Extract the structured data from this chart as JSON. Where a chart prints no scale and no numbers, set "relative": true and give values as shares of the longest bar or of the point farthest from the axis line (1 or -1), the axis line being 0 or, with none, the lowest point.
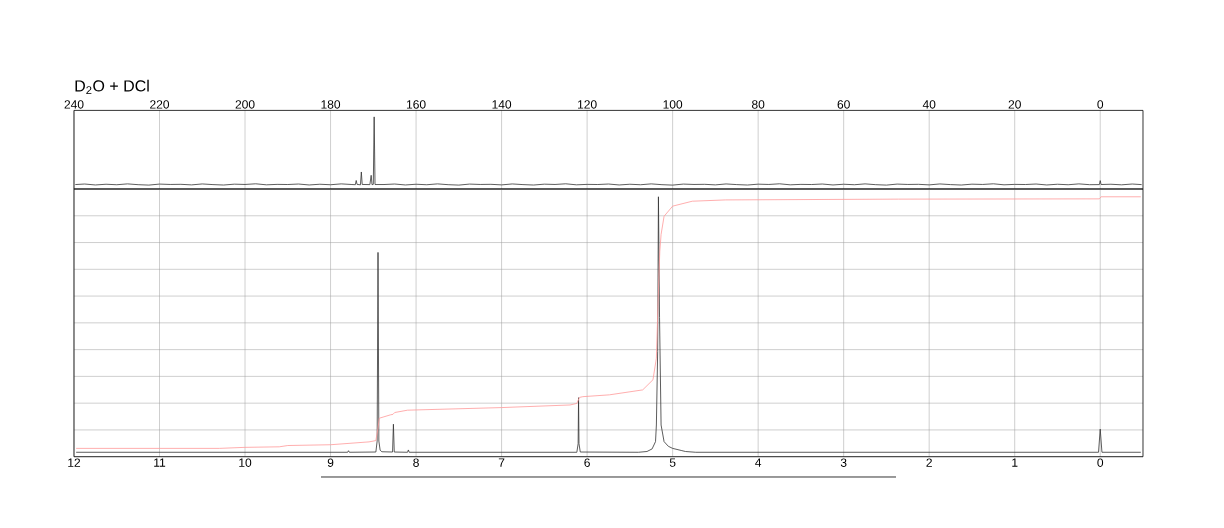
{
  "chart_data": [
    {
      "type": "line",
      "title": "D$_{2}$O + DCl",
      "relative": true,
      "tick_labels": "x",
      "grid": "x",
      "xlim": [
        240,
        -10
      ],
      "xticks": [
        240,
        220,
        200,
        180,
        160,
        140,
        120,
        100,
        80,
        60,
        40,
        20,
        0
      ],
      "color": "#333333",
      "x": [
        239.6,
        237.5,
        235,
        232.5,
        230,
        227.5,
        225,
        222.5,
        220,
        217.5,
        215,
        212.5,
        210,
        207.5,
        205,
        202.5,
        200,
        197.5,
        195,
        192.5,
        190,
        187.5,
        185,
        182.5,
        180,
        177.5,
        175,
        174.2,
        174,
        173.8,
        173,
        172.8,
        172.6,
        170.8,
        170.5,
        170.3,
        170,
        169.8,
        169.6,
        167.5,
        165,
        162.5,
        160,
        157.5,
        155,
        152.5,
        150,
        147.5,
        145,
        142.5,
        140,
        137.5,
        135,
        132.5,
        130,
        127.5,
        125,
        122.5,
        120,
        117.5,
        115,
        112.5,
        110,
        107.5,
        105,
        102.5,
        100,
        97.5,
        95,
        92.5,
        90,
        87.5,
        85,
        82.5,
        80,
        77.5,
        75,
        72.5,
        70,
        67.5,
        65,
        62.5,
        60,
        57.5,
        55,
        52.5,
        50,
        47.5,
        45,
        42.5,
        40,
        37.5,
        35,
        32.5,
        30,
        27.5,
        25,
        22.5,
        20,
        17.5,
        15,
        12.5,
        10,
        7.5,
        5,
        2.5,
        0.2,
        0,
        -0.2,
        -2.5,
        -5,
        -7.5,
        -9.6
      ],
      "values": [
        0.062,
        0.069,
        0.056,
        0.066,
        0.059,
        0.071,
        0.06,
        0.054,
        0.068,
        0.063,
        0.065,
        0.057,
        0.07,
        0.061,
        0.055,
        0.067,
        0.063,
        0.072,
        0.058,
        0.064,
        0.062,
        0.069,
        0.056,
        0.066,
        0.059,
        0.071,
        0.062,
        0.06,
        0.118,
        0.064,
        0.058,
        0.236,
        0.063,
        0.061,
        0.19,
        0.06,
        0.064,
        1.0,
        0.062,
        0.062,
        0.069,
        0.056,
        0.066,
        0.059,
        0.071,
        0.06,
        0.054,
        0.068,
        0.063,
        0.065,
        0.057,
        0.07,
        0.061,
        0.055,
        0.067,
        0.063,
        0.072,
        0.058,
        0.064,
        0.062,
        0.069,
        0.056,
        0.066,
        0.059,
        0.071,
        0.06,
        0.054,
        0.068,
        0.063,
        0.065,
        0.057,
        0.07,
        0.061,
        0.055,
        0.067,
        0.063,
        0.072,
        0.058,
        0.064,
        0.062,
        0.069,
        0.056,
        0.066,
        0.059,
        0.071,
        0.06,
        0.054,
        0.068,
        0.063,
        0.065,
        0.057,
        0.07,
        0.061,
        0.055,
        0.067,
        0.063,
        0.072,
        0.058,
        0.064,
        0.062,
        0.069,
        0.056,
        0.066,
        0.059,
        0.071,
        0.06,
        0.061,
        0.116,
        0.062,
        0.066,
        0.058,
        0.069,
        0.061
      ]
    },
    {
      "type": "line",
      "relative": true,
      "tick_labels": "x",
      "grid": true,
      "xlim": [
        12,
        -0.5
      ],
      "xticks": [
        12,
        11,
        10,
        9,
        8,
        7,
        6,
        5,
        4,
        3,
        2,
        1,
        0
      ],
      "series": [
        {
          "color": "#333333",
          "x": [
            11.97,
            9.5,
            8.8,
            8.79,
            8.78,
            8.47,
            8.455,
            8.445,
            8.435,
            8.42,
            8.4,
            8.275,
            8.265,
            8.255,
            8.1,
            8.09,
            8.08,
            6.12,
            6.105,
            6.1,
            6.095,
            6.08,
            5.4,
            5.3,
            5.24,
            5.2,
            5.19,
            5.175,
            5.166,
            5.153,
            5.135,
            5.1,
            5.05,
            5.0,
            4.9,
            4.85,
            4.73,
            0.02,
            0,
            -0.02,
            -0.47
          ],
          "values": [
            0.017,
            0.017,
            0.017,
            0.023,
            0.017,
            0.018,
            0.06,
            0.786,
            0.06,
            0.025,
            0.019,
            0.018,
            0.125,
            0.018,
            0.017,
            0.026,
            0.017,
            0.017,
            0.05,
            0.227,
            0.05,
            0.018,
            0.017,
            0.02,
            0.03,
            0.058,
            0.122,
            0.405,
            1.0,
            0.535,
            0.122,
            0.058,
            0.04,
            0.032,
            0.024,
            0.02,
            0.017,
            0.017,
            0.106,
            0.017,
            0.017
          ]
        },
        {
          "color": "#ff9999",
          "x": [
            11.97,
            10.3,
            10.0,
            9.6,
            9.5,
            9.0,
            8.55,
            8.47,
            8.445,
            8.43,
            8.3,
            8.27,
            8.25,
            8.1,
            7.0,
            6.2,
            6.12,
            6.09,
            6.05,
            5.74,
            5.35,
            5.23,
            5.19,
            5.17,
            5.15,
            5.135,
            5.1,
            5.0,
            4.77,
            4.38,
            2.36,
            0.01,
            -0.01,
            -0.47
          ],
          "values": [
            0.032,
            0.032,
            0.036,
            0.038,
            0.043,
            0.046,
            0.057,
            0.062,
            0.11,
            0.148,
            0.161,
            0.163,
            0.17,
            0.179,
            0.189,
            0.199,
            0.205,
            0.228,
            0.231,
            0.238,
            0.257,
            0.296,
            0.379,
            0.598,
            0.79,
            0.855,
            0.925,
            0.964,
            0.983,
            0.988,
            0.991,
            0.992,
            1.0,
            1.0
          ]
        }
      ]
    }
  ]
}
